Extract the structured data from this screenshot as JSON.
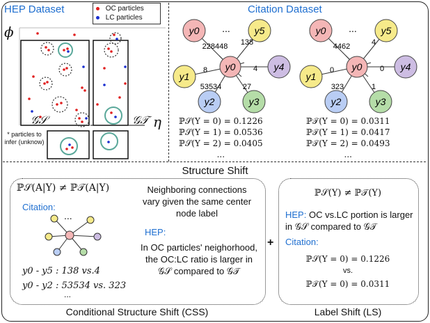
{
  "hep": {
    "title": "HEP Dataset",
    "legend": [
      {
        "label": "OC particles",
        "color": "#e02020"
      },
      {
        "label": "LC particles",
        "color": "#1a2fd0"
      }
    ],
    "phi": "ϕ",
    "eta": "η",
    "gs": "𝒢𝒮",
    "gt": "𝒢𝒯",
    "note": "* particles to infer (unknow)"
  },
  "citation": {
    "title": "Citation Dataset",
    "node_labels": [
      "y0",
      "y1",
      "y2",
      "y3",
      "y4",
      "y5"
    ],
    "center_label": "y0",
    "ellipsis": "...",
    "source_edges": {
      "y0y5_left": "228448",
      "y0y5_right": "138",
      "y1": "8",
      "y4": "4",
      "y2": "53534",
      "y3": "27"
    },
    "target_edges": {
      "y0y5_left": "4462",
      "y0y5_right": "4",
      "y1": "0",
      "y4": "0",
      "y2": "323",
      "y3": "1"
    },
    "source_probs": [
      "ℙ𝒮(Y = 0) = 0.1226",
      "ℙ𝒮(Y = 1) = 0.0536",
      "ℙ𝒮(Y = 2) = 0.0405"
    ],
    "target_probs": [
      "ℙ𝒯(Y = 0) = 0.0311",
      "ℙ𝒯(Y = 1) = 0.0417",
      "ℙ𝒯(Y = 2) = 0.0493"
    ],
    "dots": "..."
  },
  "structure_shift": {
    "title": "Structure Shift",
    "css": {
      "formula": "ℙ𝒮(A|Y) ≠ ℙ𝒯(A|Y)",
      "citation_label": "Citation:",
      "desc": "Neighboring connections vary given the same center node label",
      "hep_label": "HEP:",
      "hep_desc": "In OC particles' neighorhood, the OC:LC ratio is larger in 𝒢𝒮 compared to 𝒢𝒯",
      "eq1": "y0 - y5 : 138 vs.4",
      "eq2": "y0 - y2 : 53534 vs. 323",
      "dots": "...",
      "footer": "Conditional Structure Shift (CSS)"
    },
    "plus": "+",
    "ls": {
      "formula": "ℙ𝒮(Y) ≠ ℙ𝒯(Y)",
      "hep_label": "HEP:",
      "hep_desc": " OC vs.LC portion is larger in 𝒢𝒮 compared to 𝒢𝒯",
      "citation_label": "Citation:",
      "eq1": "ℙ𝒮(Y = 0) = 0.1226",
      "vs": "vs.",
      "eq2": "ℙ𝒯(Y = 0) = 0.0311",
      "footer": "Label Shift (LS)"
    }
  },
  "colors": {
    "node_y0": "#f4b6b6",
    "node_y1": "#f6ea8a",
    "node_y2": "#b9cdf4",
    "node_y3": "#b5dda8",
    "node_y4": "#cdbde3",
    "node_y5": "#f6ea8a",
    "accent": "#1f6fd0",
    "teal": "#5aa89a"
  }
}
